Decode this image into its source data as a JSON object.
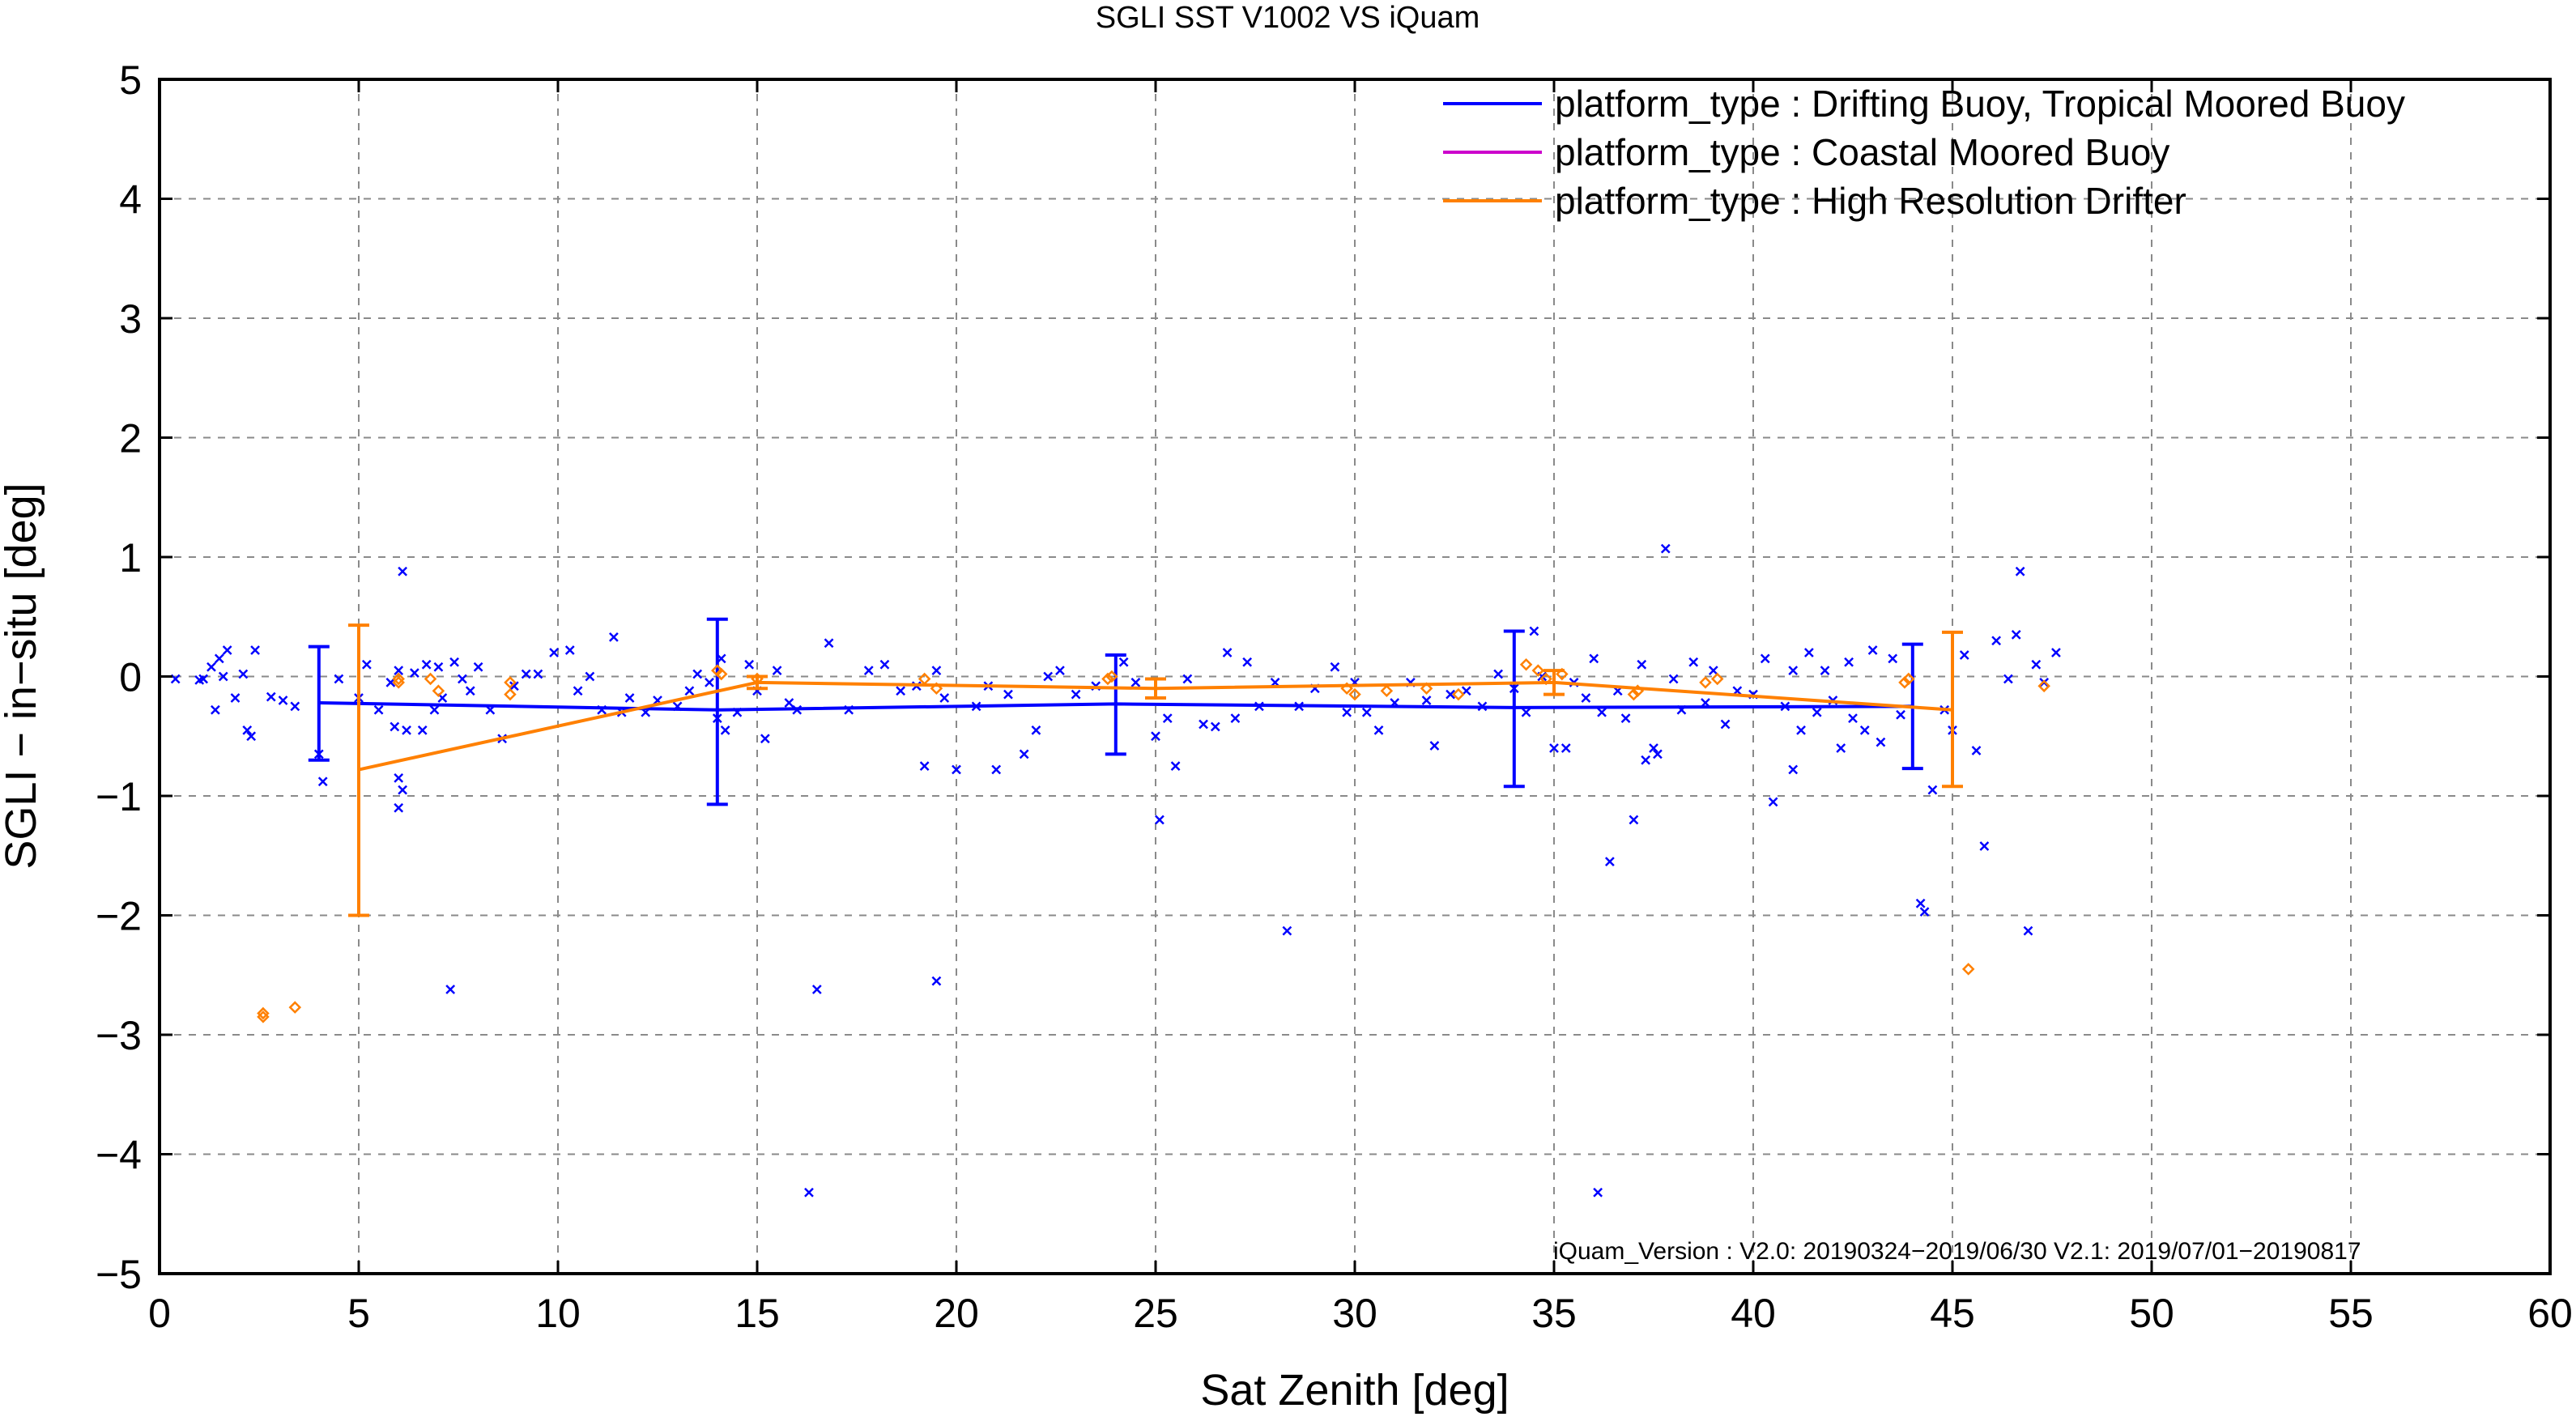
{
  "chart_data": {
    "type": "scatter",
    "title": "SGLI SST V1002 VS iQuam",
    "xlabel": "Sat Zenith [deg]",
    "ylabel": "SGLI − in−situ [deg]",
    "xlim": [
      0,
      60
    ],
    "ylim": [
      -5,
      5
    ],
    "xticks": [
      0,
      5,
      10,
      15,
      20,
      25,
      30,
      35,
      40,
      45,
      50,
      55,
      60
    ],
    "yticks": [
      5,
      4,
      3,
      2,
      1,
      0,
      -1,
      -2,
      -3,
      -4,
      -5
    ],
    "ytick_labels": [
      "5",
      "4",
      "3",
      "2",
      "1",
      "0",
      "−1",
      "−2",
      "−3",
      "−4",
      "−5"
    ],
    "grid": true,
    "legend_position": "top-right",
    "annotation": "iQuam_Version :  V2.0: 20190324−2019/06/30 V2.1: 2019/07/01−20190817",
    "series": [
      {
        "name": "platform_type : Drifting Buoy, Tropical Moored Buoy",
        "color": "#0000ff",
        "marker": "x",
        "mean_line": {
          "x": [
            4,
            14,
            24,
            34,
            44
          ],
          "y": [
            -0.22,
            -0.28,
            -0.23,
            -0.26,
            -0.25
          ]
        },
        "error_bars": [
          {
            "x": 4,
            "low": -0.7,
            "high": 0.25
          },
          {
            "x": 14,
            "low": -1.07,
            "high": 0.48
          },
          {
            "x": 24,
            "low": -0.65,
            "high": 0.18
          },
          {
            "x": 34,
            "low": -0.92,
            "high": 0.38
          },
          {
            "x": 44,
            "low": -0.77,
            "high": 0.27
          }
        ],
        "points": [
          [
            0.4,
            -0.02
          ],
          [
            1.0,
            -0.03
          ],
          [
            1.1,
            -0.02
          ],
          [
            1.3,
            0.08
          ],
          [
            1.4,
            -0.28
          ],
          [
            1.5,
            0.15
          ],
          [
            1.6,
            0.0
          ],
          [
            1.7,
            0.22
          ],
          [
            1.9,
            -0.18
          ],
          [
            2.1,
            0.02
          ],
          [
            2.2,
            -0.45
          ],
          [
            2.3,
            -0.5
          ],
          [
            2.4,
            0.22
          ],
          [
            2.8,
            -0.17
          ],
          [
            3.1,
            -0.2
          ],
          [
            3.4,
            -0.25
          ],
          [
            4.0,
            -0.65
          ],
          [
            4.1,
            -0.88
          ],
          [
            4.5,
            -0.02
          ],
          [
            5.0,
            -0.18
          ],
          [
            5.2,
            0.1
          ],
          [
            5.5,
            -0.28
          ],
          [
            5.8,
            -0.05
          ],
          [
            5.9,
            -0.42
          ],
          [
            6.0,
            0.05
          ],
          [
            6.0,
            -0.85
          ],
          [
            6.0,
            -1.1
          ],
          [
            6.1,
            0.88
          ],
          [
            6.1,
            -0.95
          ],
          [
            6.2,
            -0.45
          ],
          [
            6.4,
            0.03
          ],
          [
            6.6,
            -0.45
          ],
          [
            6.7,
            0.1
          ],
          [
            6.9,
            -0.28
          ],
          [
            7.0,
            0.08
          ],
          [
            7.1,
            -0.18
          ],
          [
            7.3,
            -2.62
          ],
          [
            7.4,
            0.12
          ],
          [
            7.6,
            -0.02
          ],
          [
            7.8,
            -0.12
          ],
          [
            8.0,
            0.08
          ],
          [
            8.3,
            -0.28
          ],
          [
            8.6,
            -0.52
          ],
          [
            8.9,
            -0.08
          ],
          [
            9.2,
            0.02
          ],
          [
            9.5,
            0.02
          ],
          [
            9.9,
            0.2
          ],
          [
            10.3,
            0.22
          ],
          [
            10.5,
            -0.12
          ],
          [
            10.8,
            0.0
          ],
          [
            11.1,
            -0.28
          ],
          [
            11.4,
            0.33
          ],
          [
            11.6,
            -0.3
          ],
          [
            11.8,
            -0.18
          ],
          [
            12.2,
            -0.3
          ],
          [
            12.5,
            -0.2
          ],
          [
            13.0,
            -0.25
          ],
          [
            13.3,
            -0.12
          ],
          [
            13.5,
            0.02
          ],
          [
            13.8,
            -0.05
          ],
          [
            14.0,
            -0.35
          ],
          [
            14.1,
            0.15
          ],
          [
            14.2,
            -0.45
          ],
          [
            14.5,
            -0.3
          ],
          [
            14.8,
            0.1
          ],
          [
            15.0,
            -0.12
          ],
          [
            15.2,
            -0.52
          ],
          [
            15.5,
            0.05
          ],
          [
            15.8,
            -0.22
          ],
          [
            16.0,
            -0.28
          ],
          [
            16.3,
            -4.32
          ],
          [
            16.5,
            -2.62
          ],
          [
            16.8,
            0.28
          ],
          [
            17.3,
            -0.28
          ],
          [
            17.8,
            0.05
          ],
          [
            18.2,
            0.1
          ],
          [
            18.6,
            -0.12
          ],
          [
            19.0,
            -0.08
          ],
          [
            19.2,
            -0.75
          ],
          [
            19.5,
            0.05
          ],
          [
            19.5,
            -2.55
          ],
          [
            19.7,
            -0.18
          ],
          [
            20.0,
            -0.78
          ],
          [
            20.5,
            -0.25
          ],
          [
            20.8,
            -0.08
          ],
          [
            21.0,
            -0.78
          ],
          [
            21.3,
            -0.15
          ],
          [
            21.7,
            -0.65
          ],
          [
            22.0,
            -0.45
          ],
          [
            22.3,
            0.0
          ],
          [
            22.6,
            0.05
          ],
          [
            23.0,
            -0.15
          ],
          [
            23.5,
            -0.08
          ],
          [
            24.2,
            0.12
          ],
          [
            24.5,
            -0.05
          ],
          [
            25.0,
            -0.5
          ],
          [
            25.1,
            -1.2
          ],
          [
            25.3,
            -0.35
          ],
          [
            25.5,
            -0.75
          ],
          [
            25.8,
            -0.02
          ],
          [
            26.2,
            -0.4
          ],
          [
            26.5,
            -0.42
          ],
          [
            26.8,
            0.2
          ],
          [
            27.0,
            -0.35
          ],
          [
            27.3,
            0.12
          ],
          [
            27.6,
            -0.25
          ],
          [
            28.0,
            -0.05
          ],
          [
            28.3,
            -2.13
          ],
          [
            28.6,
            -0.25
          ],
          [
            29.0,
            -0.1
          ],
          [
            29.5,
            0.08
          ],
          [
            29.8,
            -0.3
          ],
          [
            30.0,
            -0.05
          ],
          [
            30.3,
            -0.3
          ],
          [
            30.6,
            -0.45
          ],
          [
            31.0,
            -0.22
          ],
          [
            31.4,
            -0.05
          ],
          [
            31.8,
            -0.2
          ],
          [
            32.0,
            -0.58
          ],
          [
            32.4,
            -0.15
          ],
          [
            32.8,
            -0.12
          ],
          [
            33.2,
            -0.25
          ],
          [
            33.6,
            0.02
          ],
          [
            34.0,
            -0.1
          ],
          [
            34.3,
            -0.3
          ],
          [
            34.5,
            0.38
          ],
          [
            34.7,
            0.0
          ],
          [
            35.0,
            -0.6
          ],
          [
            35.3,
            -0.6
          ],
          [
            35.5,
            -0.05
          ],
          [
            35.8,
            -0.18
          ],
          [
            36.0,
            0.15
          ],
          [
            36.1,
            -4.32
          ],
          [
            36.2,
            -0.3
          ],
          [
            36.4,
            -1.55
          ],
          [
            36.6,
            -0.12
          ],
          [
            36.8,
            -0.35
          ],
          [
            37.0,
            -1.2
          ],
          [
            37.2,
            0.1
          ],
          [
            37.3,
            -0.7
          ],
          [
            37.5,
            -0.6
          ],
          [
            37.6,
            -0.65
          ],
          [
            37.8,
            1.07
          ],
          [
            38.0,
            -0.02
          ],
          [
            38.2,
            -0.28
          ],
          [
            38.5,
            0.12
          ],
          [
            38.8,
            -0.22
          ],
          [
            39.0,
            0.05
          ],
          [
            39.3,
            -0.4
          ],
          [
            39.6,
            -0.12
          ],
          [
            40.0,
            -0.15
          ],
          [
            40.3,
            0.15
          ],
          [
            40.5,
            -1.05
          ],
          [
            40.8,
            -0.25
          ],
          [
            41.0,
            0.05
          ],
          [
            41.0,
            -0.78
          ],
          [
            41.2,
            -0.45
          ],
          [
            41.4,
            0.2
          ],
          [
            41.6,
            -0.3
          ],
          [
            41.8,
            0.05
          ],
          [
            42.0,
            -0.2
          ],
          [
            42.2,
            -0.6
          ],
          [
            42.4,
            0.12
          ],
          [
            42.5,
            -0.35
          ],
          [
            42.8,
            -0.45
          ],
          [
            43.0,
            0.22
          ],
          [
            43.2,
            -0.55
          ],
          [
            43.5,
            0.15
          ],
          [
            43.7,
            -0.32
          ],
          [
            44.2,
            -1.9
          ],
          [
            44.3,
            -1.97
          ],
          [
            44.5,
            -0.95
          ],
          [
            44.8,
            -0.28
          ],
          [
            45.0,
            -0.45
          ],
          [
            45.3,
            0.18
          ],
          [
            45.6,
            -0.62
          ],
          [
            45.8,
            -1.42
          ],
          [
            46.1,
            0.3
          ],
          [
            46.4,
            -0.02
          ],
          [
            46.6,
            0.35
          ],
          [
            46.7,
            0.88
          ],
          [
            46.9,
            -2.13
          ],
          [
            47.1,
            0.1
          ],
          [
            47.3,
            -0.05
          ],
          [
            47.6,
            0.2
          ]
        ]
      },
      {
        "name": "platform_type : Coastal Moored Buoy",
        "color": "#cc00cc",
        "marker": "none",
        "points": []
      },
      {
        "name": "platform_type : High Resolution Drifter",
        "color": "#ff8000",
        "marker": "diamond",
        "mean_line": {
          "x": [
            5,
            15,
            25,
            35,
            45
          ],
          "y": [
            -0.78,
            -0.05,
            -0.1,
            -0.05,
            -0.28
          ]
        },
        "error_bars": [
          {
            "x": 5,
            "low": -2.0,
            "high": 0.43
          },
          {
            "x": 15,
            "low": -0.1,
            "high": 0.0
          },
          {
            "x": 25,
            "low": -0.18,
            "high": -0.02
          },
          {
            "x": 35,
            "low": -0.15,
            "high": 0.05
          },
          {
            "x": 45,
            "low": -0.92,
            "high": 0.37
          }
        ],
        "points": [
          [
            2.6,
            -2.82
          ],
          [
            2.6,
            -2.85
          ],
          [
            3.4,
            -2.77
          ],
          [
            6.0,
            -0.05
          ],
          [
            6.0,
            -0.02
          ],
          [
            6.8,
            -0.02
          ],
          [
            7.0,
            -0.12
          ],
          [
            8.8,
            -0.05
          ],
          [
            8.8,
            -0.15
          ],
          [
            14.0,
            0.05
          ],
          [
            14.1,
            0.02
          ],
          [
            15.0,
            -0.02
          ],
          [
            19.2,
            -0.02
          ],
          [
            19.5,
            -0.1
          ],
          [
            23.8,
            -0.02
          ],
          [
            23.9,
            0.0
          ],
          [
            29.8,
            -0.1
          ],
          [
            30.0,
            -0.15
          ],
          [
            30.8,
            -0.12
          ],
          [
            31.8,
            -0.1
          ],
          [
            32.6,
            -0.15
          ],
          [
            34.3,
            0.1
          ],
          [
            34.6,
            0.05
          ],
          [
            34.8,
            -0.02
          ],
          [
            35.2,
            0.02
          ],
          [
            37.0,
            -0.15
          ],
          [
            37.1,
            -0.12
          ],
          [
            38.8,
            -0.05
          ],
          [
            39.1,
            -0.02
          ],
          [
            43.8,
            -0.05
          ],
          [
            43.9,
            -0.02
          ],
          [
            45.4,
            -2.45
          ],
          [
            47.3,
            -0.08
          ]
        ]
      }
    ]
  }
}
